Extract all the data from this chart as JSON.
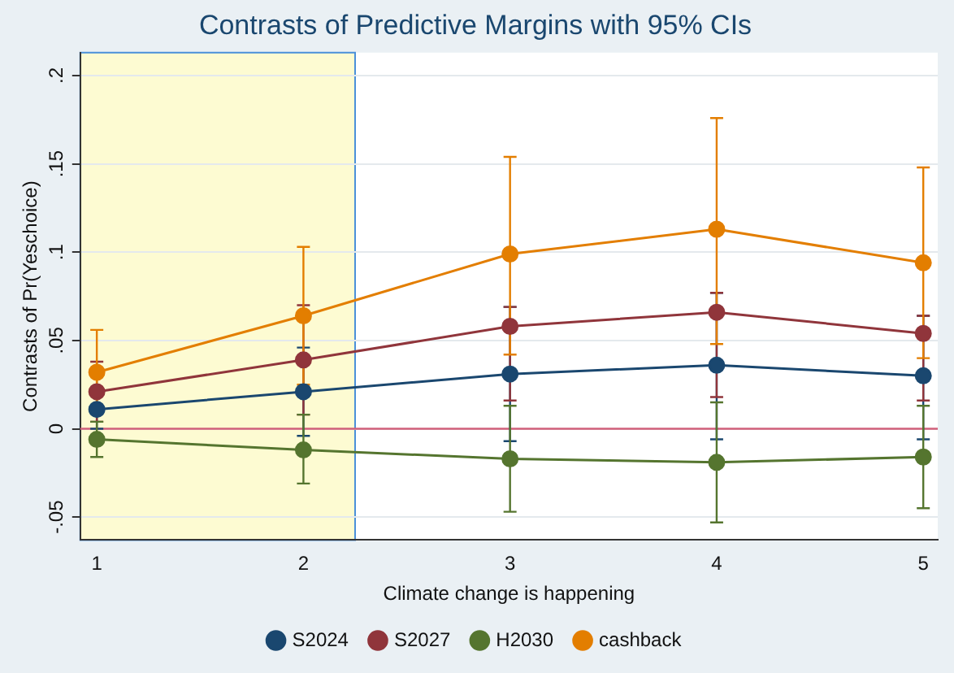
{
  "chart_data": {
    "type": "line",
    "title": "Contrasts of Predictive Margins with 95% CIs",
    "xlabel": "Climate change is happening",
    "ylabel": "Contrasts of Pr(Yeschoice)",
    "x": [
      1,
      2,
      3,
      4,
      5
    ],
    "xlim": [
      0.92,
      5.07
    ],
    "xticks": [
      1,
      2,
      3,
      4,
      5
    ],
    "ylim": [
      -0.063,
      0.213
    ],
    "yticks": [
      {
        "value": -0.05,
        "label": "-.05"
      },
      0,
      {
        "value": 0.05,
        "label": ".05"
      },
      {
        "value": 0.1,
        "label": ".1"
      },
      {
        "value": 0.15,
        "label": ".15"
      },
      {
        "value": 0.2,
        "label": ".2"
      }
    ],
    "series": [
      {
        "name": "S2024",
        "color": "#1a476f",
        "values": [
          0.011,
          0.021,
          0.031,
          0.036,
          0.03
        ],
        "errors": [
          [
            0.0,
            0.022
          ],
          [
            -0.004,
            0.046
          ],
          [
            -0.007,
            0.069
          ],
          [
            -0.006,
            0.077
          ],
          [
            -0.006,
            0.064
          ]
        ]
      },
      {
        "name": "S2027",
        "color": "#90353b",
        "values": [
          0.021,
          0.039,
          0.058,
          0.066,
          0.054
        ],
        "errors": [
          [
            0.004,
            0.038
          ],
          [
            0.008,
            0.07
          ],
          [
            0.016,
            0.069
          ],
          [
            0.018,
            0.077
          ],
          [
            0.016,
            0.064
          ]
        ]
      },
      {
        "name": "H2030",
        "color": "#55752f",
        "values": [
          -0.006,
          -0.012,
          -0.017,
          -0.019,
          -0.016
        ],
        "errors": [
          [
            -0.016,
            0.004
          ],
          [
            -0.031,
            0.008
          ],
          [
            -0.047,
            0.013
          ],
          [
            -0.053,
            0.015
          ],
          [
            -0.045,
            0.013
          ]
        ]
      },
      {
        "name": "cashback",
        "color": "#e37e00",
        "values": [
          0.032,
          0.064,
          0.099,
          0.113,
          0.094
        ],
        "errors": [
          [
            0.01,
            0.056
          ],
          [
            0.025,
            0.103
          ],
          [
            0.042,
            0.154
          ],
          [
            0.048,
            0.176
          ],
          [
            0.04,
            0.148
          ]
        ]
      }
    ],
    "ref_lines": [
      {
        "axis": "y",
        "value": 0,
        "color": "#d0607a"
      }
    ],
    "bands": [
      {
        "axis": "x",
        "from": 0.92,
        "to": 2.25,
        "color": "#fdfbd2"
      }
    ],
    "grid": "y",
    "legend": "bottom",
    "marker": "circle",
    "line_style": "solid"
  }
}
